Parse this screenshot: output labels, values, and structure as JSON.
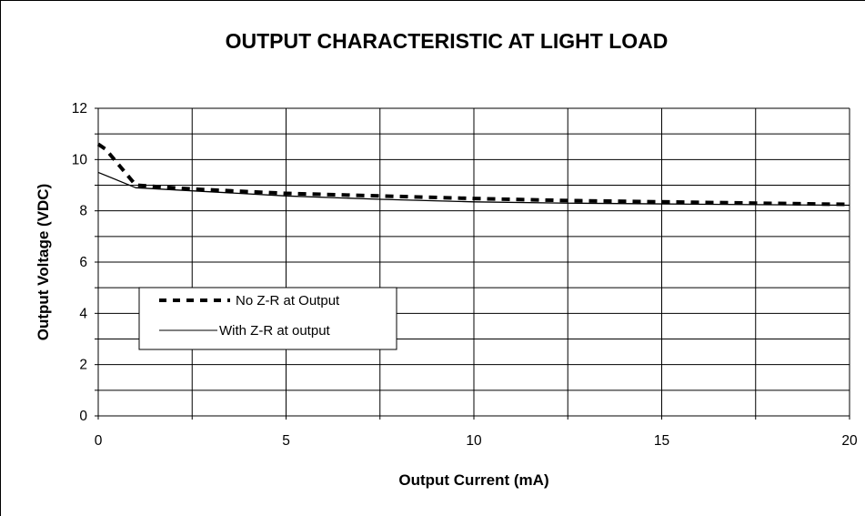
{
  "chart_data": {
    "type": "line",
    "title": "OUTPUT CHARACTERISTIC AT LIGHT LOAD",
    "xlabel": "Output Current (mA)",
    "ylabel": "Output Voltage (VDC)",
    "xlim": [
      0,
      20
    ],
    "ylim": [
      0,
      12
    ],
    "x_ticks": [
      0,
      5,
      10,
      15,
      20
    ],
    "y_ticks": [
      0,
      2,
      4,
      6,
      8,
      10,
      12
    ],
    "x_gridlines": [
      0,
      2.5,
      5,
      7.5,
      10,
      12.5,
      15,
      17.5,
      20
    ],
    "y_gridlines": [
      0,
      1,
      2,
      3,
      4,
      5,
      6,
      7,
      8,
      9,
      10,
      11,
      12
    ],
    "grid": true,
    "legend_position": "middle-left",
    "series": [
      {
        "name": "No Z-R at Output",
        "style": "dashed-thick",
        "color": "#000000",
        "x": [
          0,
          0.2,
          1,
          2.5,
          5,
          7.5,
          10,
          12.5,
          15,
          17.5,
          20
        ],
        "y": [
          10.6,
          10.4,
          9.0,
          8.85,
          8.68,
          8.58,
          8.48,
          8.4,
          8.35,
          8.3,
          8.25
        ]
      },
      {
        "name": "With Z-R at output",
        "style": "solid-thin",
        "color": "#000000",
        "x": [
          0,
          1,
          2.5,
          5,
          7.5,
          10,
          12.5,
          15,
          17.5,
          20
        ],
        "y": [
          9.5,
          8.9,
          8.78,
          8.58,
          8.45,
          8.35,
          8.3,
          8.27,
          8.24,
          8.22
        ]
      }
    ]
  }
}
